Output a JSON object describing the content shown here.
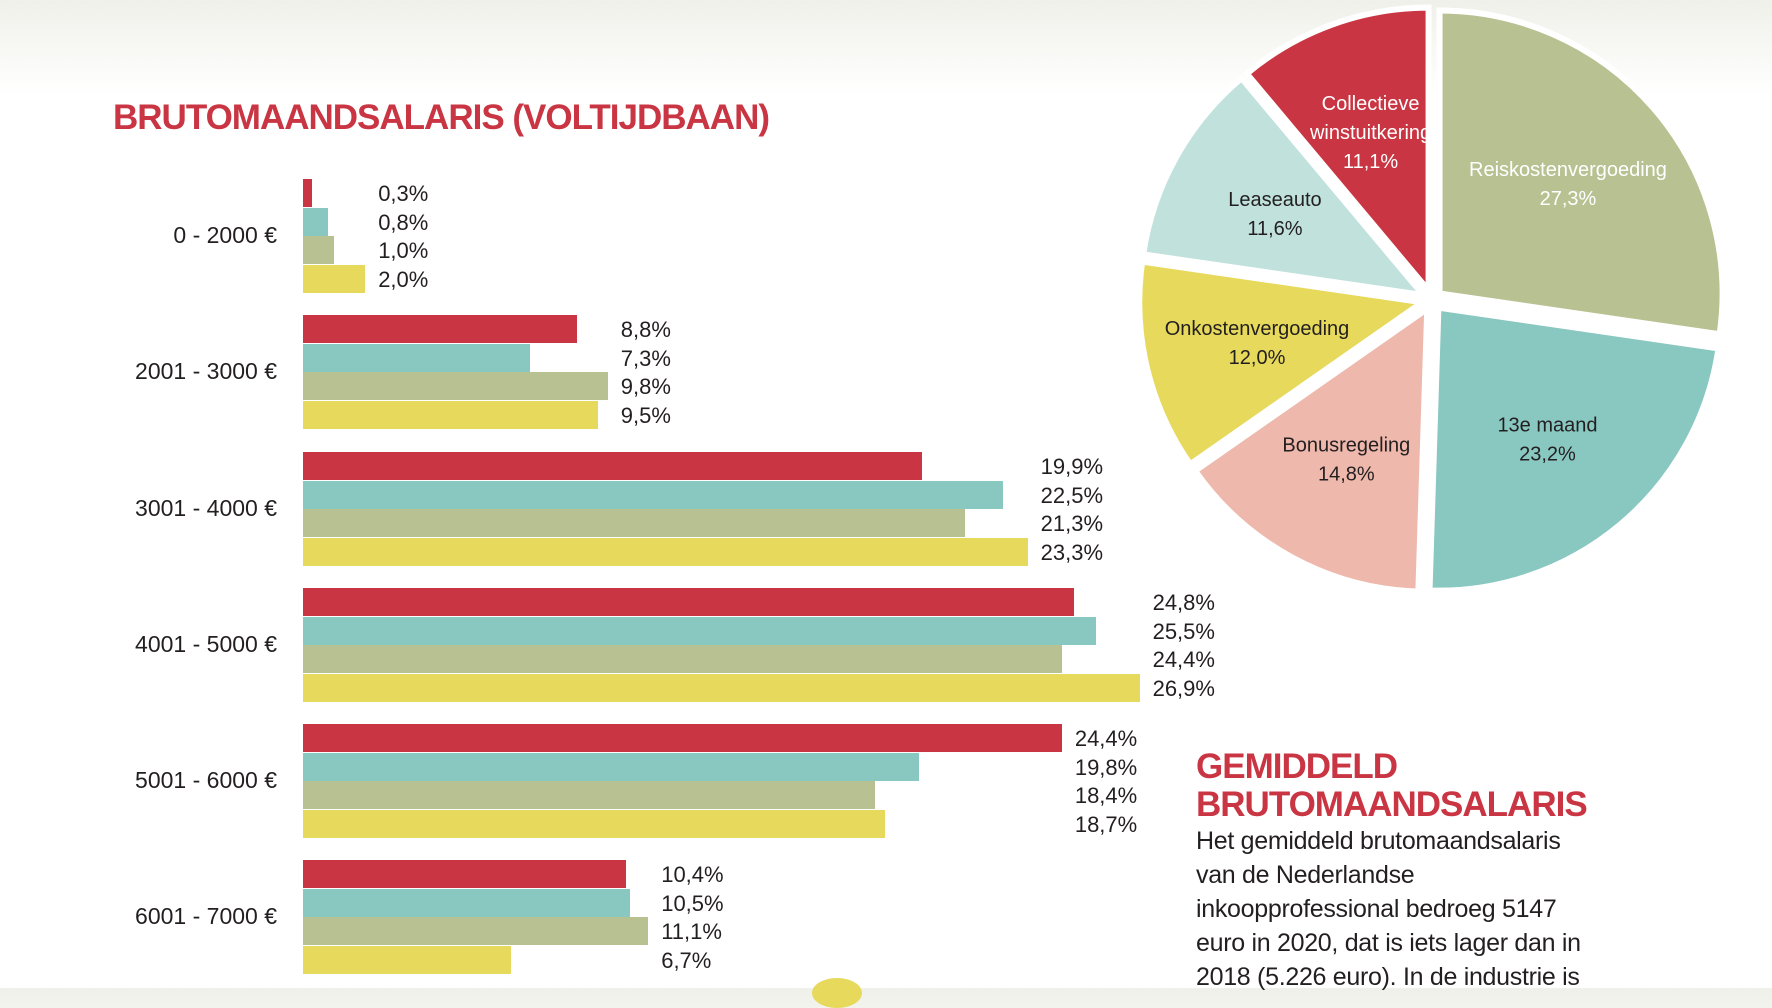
{
  "title": "BRUTOMAANDSALARIS (VOLTIJDBAAN)",
  "chart_data": [
    {
      "type": "bar",
      "orientation": "horizontal",
      "title": "BRUTOMAANDSALARIS (VOLTIJDBAAN)",
      "categories": [
        "0 - 2000 €",
        "2001 - 3000 €",
        "3001 - 4000 €",
        "4001 - 5000 €",
        "5001 - 6000 €",
        "6001 - 7000 €"
      ],
      "series": [
        {
          "color": "#c93542",
          "values": [
            0.3,
            8.8,
            19.9,
            24.8,
            24.4,
            10.4
          ],
          "labels": [
            "0,3%",
            "8,8%",
            "19,9%",
            "24,8%",
            "24,4%",
            "10,4%"
          ]
        },
        {
          "color": "#89c7c1",
          "values": [
            0.8,
            7.3,
            22.5,
            25.5,
            19.8,
            10.5
          ],
          "labels": [
            "0,8%",
            "7,3%",
            "22,5%",
            "25,5%",
            "19,8%",
            "10,5%"
          ]
        },
        {
          "color": "#b8c191",
          "values": [
            1.0,
            9.8,
            21.3,
            24.4,
            18.4,
            11.1
          ],
          "labels": [
            "1,0%",
            "9,8%",
            "21,3%",
            "24,4%",
            "18,4%",
            "11,1%"
          ]
        },
        {
          "color": "#e6d95c",
          "values": [
            2.0,
            9.5,
            23.3,
            26.9,
            18.7,
            6.7
          ],
          "labels": [
            "2,0%",
            "9,5%",
            "23,3%",
            "26,9%",
            "18,7%",
            "6,7%"
          ]
        }
      ],
      "grid": false
    },
    {
      "type": "pie",
      "exploded": true,
      "slices": [
        {
          "name": "Reiskostenvergoeding",
          "value": 27.3,
          "label": "27,3%",
          "color": "#b8c191",
          "text_color": "#ffffff"
        },
        {
          "name": "13e maand",
          "value": 23.2,
          "label": "23,2%",
          "color": "#89c7c1",
          "text_color": "#231f20"
        },
        {
          "name": "Bonusregeling",
          "value": 14.8,
          "label": "14,8%",
          "color": "#eeb8ac",
          "text_color": "#231f20"
        },
        {
          "name": "Onkostenvergoeding",
          "value": 12.0,
          "label": "12,0%",
          "color": "#e6d95c",
          "text_color": "#231f20"
        },
        {
          "name": "Leaseauto",
          "value": 11.6,
          "label": "11,6%",
          "color": "#c0e1dc",
          "text_color": "#231f20"
        },
        {
          "name": "Collectieve winstuitkering",
          "lines": [
            "Collectieve",
            "winstuitkering"
          ],
          "value": 11.1,
          "label": "11,1%",
          "color": "#c93542",
          "text_color": "#ffffff"
        }
      ]
    }
  ],
  "side": {
    "heading_line1": "GEMIDDELD",
    "heading_line2": "BRUTOMAANDSALARIS",
    "body_lines": [
      "Het gemiddeld brutomaandsalaris",
      "van de Nederlandse",
      "inkoopprofessional bedroeg 5147",
      "euro in 2020, dat is iets lager dan in",
      "2018 (5.226 euro). In de industrie is"
    ]
  }
}
